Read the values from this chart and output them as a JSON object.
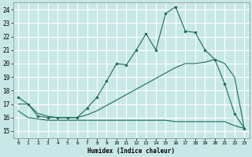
{
  "xlabel": "Humidex (Indice chaleur)",
  "bg_color": "#c8e8e8",
  "grid_color": "#ffffff",
  "line_color": "#1a6b5a",
  "xlim": [
    -0.5,
    23.5
  ],
  "ylim": [
    14.5,
    24.5
  ],
  "yticks": [
    15,
    16,
    17,
    18,
    19,
    20,
    21,
    22,
    23,
    24
  ],
  "xticks": [
    0,
    1,
    2,
    3,
    4,
    5,
    6,
    7,
    8,
    9,
    10,
    11,
    12,
    13,
    14,
    15,
    16,
    17,
    18,
    19,
    20,
    21,
    22,
    23
  ],
  "series1_x": [
    0,
    1,
    2,
    3,
    4,
    5,
    6,
    7,
    8,
    9,
    10,
    11,
    12,
    13,
    14,
    15,
    16,
    17,
    18,
    19,
    20,
    21,
    22,
    23
  ],
  "series1_y": [
    17.5,
    17.0,
    16.1,
    16.0,
    16.0,
    16.0,
    16.0,
    16.7,
    17.5,
    18.7,
    20.0,
    19.9,
    21.0,
    22.2,
    21.0,
    23.7,
    24.2,
    22.4,
    22.3,
    21.0,
    20.3,
    18.5,
    16.3,
    15.2
  ],
  "series2_x": [
    0,
    1,
    2,
    3,
    4,
    5,
    6,
    7,
    8,
    9,
    10,
    11,
    12,
    13,
    14,
    15,
    16,
    17,
    18,
    19,
    20,
    21,
    22,
    23
  ],
  "series2_y": [
    17.0,
    17.0,
    16.3,
    16.1,
    16.0,
    16.0,
    16.0,
    16.2,
    16.5,
    16.9,
    17.3,
    17.7,
    18.1,
    18.5,
    18.9,
    19.3,
    19.7,
    20.0,
    20.0,
    20.1,
    20.3,
    20.0,
    19.0,
    15.2
  ],
  "series3_x": [
    0,
    1,
    2,
    3,
    4,
    5,
    6,
    7,
    8,
    9,
    10,
    11,
    12,
    13,
    14,
    15,
    16,
    17,
    18,
    19,
    20,
    21,
    22,
    23
  ],
  "series3_y": [
    16.5,
    16.0,
    15.9,
    15.8,
    15.8,
    15.8,
    15.8,
    15.8,
    15.8,
    15.8,
    15.8,
    15.8,
    15.8,
    15.8,
    15.8,
    15.8,
    15.7,
    15.7,
    15.7,
    15.7,
    15.7,
    15.7,
    15.4,
    15.2
  ]
}
